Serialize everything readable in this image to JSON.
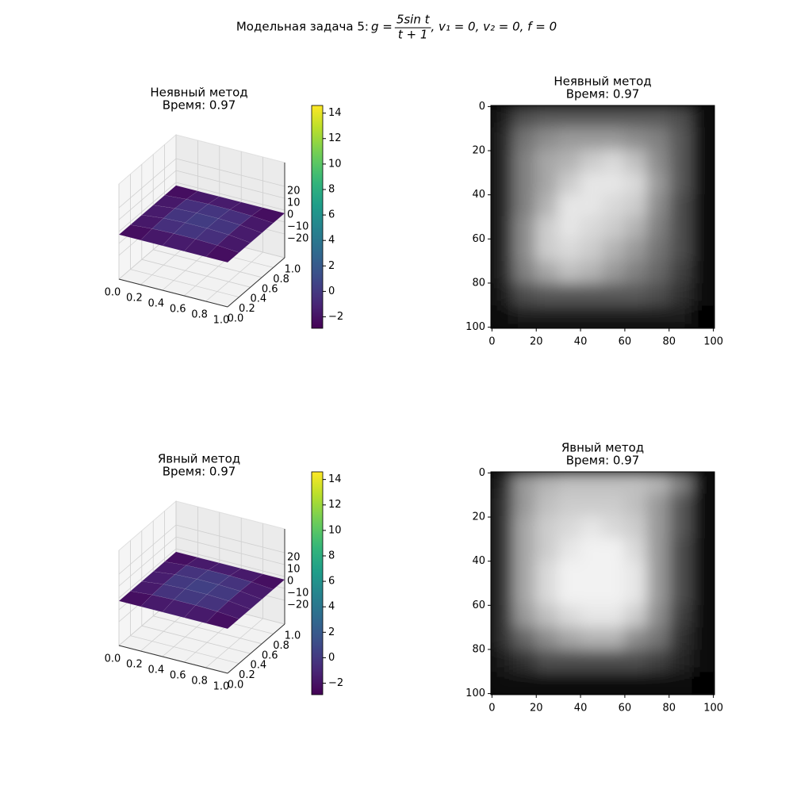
{
  "suptitle": {
    "prefix": "Модельная задача 5:",
    "lhs": "g =",
    "numerator": "5sin t",
    "denominator": "t + 1",
    "suffix": ", v₁ = 0, v₂ = 0, f = 0"
  },
  "chart_data": [
    {
      "type": "surface3d",
      "title": "Неявный метод",
      "subtitle": "Время: 0.97",
      "xlim": [
        0,
        1
      ],
      "ylim": [
        0,
        1
      ],
      "zlim": [
        -40,
        40
      ],
      "xticks": [
        {
          "value": 0,
          "label": "0.0"
        },
        {
          "value": 0.2,
          "label": "0.2"
        },
        {
          "value": 0.4,
          "label": "0.4"
        },
        {
          "value": 0.6,
          "label": "0.6"
        },
        {
          "value": 0.8,
          "label": "0.8"
        },
        {
          "value": 1,
          "label": "1.0"
        }
      ],
      "yticks": [
        {
          "value": 0,
          "label": "0.0"
        },
        {
          "value": 0.2,
          "label": "0.2"
        },
        {
          "value": 0.4,
          "label": "0.4"
        },
        {
          "value": 0.6,
          "label": "0.6"
        },
        {
          "value": 0.8,
          "label": "0.8"
        },
        {
          "value": 1,
          "label": "1.0"
        }
      ],
      "zticks": [
        {
          "value": -20,
          "label": "−20"
        },
        {
          "value": -10,
          "label": "−10"
        },
        0,
        10,
        20
      ],
      "x": [
        0,
        0.2,
        0.4,
        0.6,
        0.8,
        1
      ],
      "y": [
        0,
        0.2,
        0.4,
        0.6,
        0.8,
        1
      ],
      "z": [
        [
          -2.6,
          -2.6,
          -2.6,
          -2.6,
          -2.6,
          -2.6
        ],
        [
          -2.6,
          -1.2,
          -0.6,
          -0.6,
          -1.2,
          -2.6
        ],
        [
          -2.6,
          -0.6,
          0.2,
          0.2,
          -0.6,
          -2.6
        ],
        [
          -2.6,
          -0.6,
          0.2,
          0.2,
          -0.6,
          -2.6
        ],
        [
          -2.6,
          -1.2,
          -0.6,
          -0.6,
          -1.2,
          -2.6
        ],
        [
          -2.6,
          -2.6,
          -2.6,
          -2.6,
          -2.6,
          -2.6
        ]
      ],
      "colormap": "viridis",
      "colorbar": {
        "lim": [
          -2.9,
          14.6
        ],
        "ticks": [
          {
            "value": -2,
            "label": "−2"
          },
          0,
          2,
          4,
          6,
          8,
          10,
          12,
          14
        ]
      }
    },
    {
      "type": "image",
      "title": "Неявный метод",
      "subtitle": "Время: 0.97",
      "xlim": [
        -0.5,
        100.5
      ],
      "ylim": [
        100.5,
        -0.5
      ],
      "xticks": [
        0,
        20,
        40,
        60,
        80,
        100
      ],
      "yticks": [
        0,
        20,
        40,
        60,
        80,
        100
      ],
      "colormap": "gray",
      "vlim": [
        0,
        1
      ],
      "z": [
        [
          0.1,
          0.3,
          0.35,
          0.35,
          0.35,
          0.35,
          0.35,
          0.35,
          0.3,
          0.05
        ],
        [
          0.15,
          0.45,
          0.55,
          0.6,
          0.6,
          0.6,
          0.55,
          0.5,
          0.35,
          0.05
        ],
        [
          0.15,
          0.5,
          0.65,
          0.7,
          0.8,
          0.85,
          0.75,
          0.55,
          0.35,
          0.05
        ],
        [
          0.15,
          0.5,
          0.65,
          0.8,
          0.9,
          0.9,
          0.85,
          0.6,
          0.35,
          0.05
        ],
        [
          0.15,
          0.5,
          0.7,
          0.9,
          0.9,
          0.85,
          0.8,
          0.55,
          0.3,
          0.05
        ],
        [
          0.15,
          0.55,
          0.8,
          0.9,
          0.85,
          0.8,
          0.7,
          0.5,
          0.3,
          0.05
        ],
        [
          0.15,
          0.55,
          0.8,
          0.85,
          0.8,
          0.7,
          0.6,
          0.45,
          0.3,
          0.05
        ],
        [
          0.15,
          0.5,
          0.65,
          0.75,
          0.7,
          0.6,
          0.5,
          0.4,
          0.25,
          0.05
        ],
        [
          0.1,
          0.3,
          0.35,
          0.35,
          0.35,
          0.35,
          0.35,
          0.3,
          0.2,
          0.05
        ],
        [
          0.05,
          0.1,
          0.1,
          0.1,
          0.1,
          0.1,
          0.1,
          0.1,
          0.1,
          0.02
        ]
      ]
    },
    {
      "type": "surface3d",
      "title": "Явный метод",
      "subtitle": "Время: 0.97",
      "xlim": [
        0,
        1
      ],
      "ylim": [
        0,
        1
      ],
      "zlim": [
        -40,
        40
      ],
      "xticks": [
        {
          "value": 0,
          "label": "0.0"
        },
        {
          "value": 0.2,
          "label": "0.2"
        },
        {
          "value": 0.4,
          "label": "0.4"
        },
        {
          "value": 0.6,
          "label": "0.6"
        },
        {
          "value": 0.8,
          "label": "0.8"
        },
        {
          "value": 1,
          "label": "1.0"
        }
      ],
      "yticks": [
        {
          "value": 0,
          "label": "0.0"
        },
        {
          "value": 0.2,
          "label": "0.2"
        },
        {
          "value": 0.4,
          "label": "0.4"
        },
        {
          "value": 0.6,
          "label": "0.6"
        },
        {
          "value": 0.8,
          "label": "0.8"
        },
        {
          "value": 1,
          "label": "1.0"
        }
      ],
      "zticks": [
        {
          "value": -20,
          "label": "−20"
        },
        {
          "value": -10,
          "label": "−10"
        },
        0,
        10,
        20
      ],
      "x": [
        0,
        0.2,
        0.4,
        0.6,
        0.8,
        1
      ],
      "y": [
        0,
        0.2,
        0.4,
        0.6,
        0.8,
        1
      ],
      "z": [
        [
          -2.6,
          -2.6,
          -2.6,
          -2.6,
          -2.6,
          -2.6
        ],
        [
          -2.6,
          -1.0,
          -0.4,
          -0.4,
          -1.0,
          -2.6
        ],
        [
          -2.6,
          -0.4,
          0.4,
          0.4,
          -0.4,
          -2.6
        ],
        [
          -2.6,
          -0.4,
          0.4,
          0.4,
          -0.4,
          -2.6
        ],
        [
          -2.6,
          -1.0,
          -0.4,
          -0.4,
          -1.0,
          -2.6
        ],
        [
          -2.6,
          -2.6,
          -2.6,
          -2.6,
          -2.6,
          -2.6
        ]
      ],
      "colormap": "viridis",
      "colorbar": {
        "lim": [
          -2.9,
          14.6
        ],
        "ticks": [
          {
            "value": -2,
            "label": "−2"
          },
          0,
          2,
          4,
          6,
          8,
          10,
          12,
          14
        ]
      }
    },
    {
      "type": "image",
      "title": "Явный метод",
      "subtitle": "Время: 0.97",
      "xlim": [
        -0.5,
        100.5
      ],
      "ylim": [
        100.5,
        -0.5
      ],
      "xticks": [
        0,
        20,
        40,
        60,
        80,
        100
      ],
      "yticks": [
        0,
        20,
        40,
        60,
        80,
        100
      ],
      "colormap": "gray",
      "vlim": [
        0,
        1
      ],
      "z": [
        [
          0.15,
          0.6,
          0.7,
          0.75,
          0.75,
          0.75,
          0.75,
          0.7,
          0.5,
          0.05
        ],
        [
          0.2,
          0.6,
          0.75,
          0.8,
          0.8,
          0.8,
          0.75,
          0.6,
          0.35,
          0.05
        ],
        [
          0.2,
          0.65,
          0.8,
          0.85,
          0.9,
          0.85,
          0.8,
          0.6,
          0.35,
          0.05
        ],
        [
          0.2,
          0.65,
          0.8,
          0.9,
          0.95,
          0.95,
          0.85,
          0.6,
          0.3,
          0.05
        ],
        [
          0.2,
          0.65,
          0.85,
          0.95,
          0.95,
          0.95,
          0.9,
          0.6,
          0.3,
          0.05
        ],
        [
          0.2,
          0.65,
          0.85,
          0.95,
          0.95,
          0.95,
          0.9,
          0.6,
          0.3,
          0.05
        ],
        [
          0.2,
          0.6,
          0.75,
          0.85,
          0.9,
          0.9,
          0.8,
          0.55,
          0.25,
          0.05
        ],
        [
          0.2,
          0.4,
          0.55,
          0.65,
          0.7,
          0.7,
          0.55,
          0.45,
          0.2,
          0.05
        ],
        [
          0.1,
          0.2,
          0.3,
          0.3,
          0.3,
          0.3,
          0.3,
          0.25,
          0.15,
          0.05
        ],
        [
          0.05,
          0.05,
          0.05,
          0.05,
          0.05,
          0.05,
          0.05,
          0.05,
          0.05,
          0.02
        ]
      ]
    }
  ]
}
